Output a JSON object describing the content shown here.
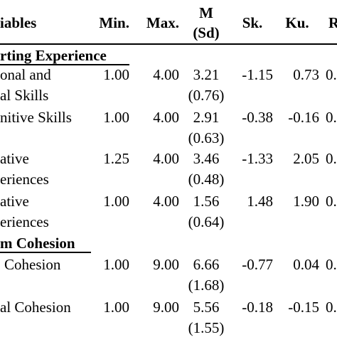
{
  "header": {
    "variables": "iables",
    "min": "Min.",
    "max": "Max.",
    "mean_top": "M",
    "mean_bottom": "(Sd)",
    "skew": "Sk.",
    "kurt": "Ku.",
    "last": "R"
  },
  "section1": {
    "title": "rting Experience",
    "rows": [
      {
        "label1": "onal and",
        "label2": "al Skills",
        "min": "1.00",
        "max": "4.00",
        "mean": "3.21",
        "sd": "(0.76)",
        "sk": "-1.15",
        "ku": "0.73",
        "last": "0."
      },
      {
        "label1": "nitive Skills",
        "label2": "",
        "min": "1.00",
        "max": "4.00",
        "mean": "2.91",
        "sd": "(0.63)",
        "sk": "-0.38",
        "ku": "-0.16",
        "last": "0."
      },
      {
        "label1": "ative",
        "label2": "eriences",
        "min": "1.25",
        "max": "4.00",
        "mean": "3.46",
        "sd": "(0.48)",
        "sk": "-1.33",
        "ku": "2.05",
        "last": "0."
      },
      {
        "label1": "ative",
        "label2": "eriences",
        "min": "1.00",
        "max": "4.00",
        "mean": "1.56",
        "sd": "(0.64)",
        "sk": "1.48",
        "ku": "1.90",
        "last": "0."
      }
    ]
  },
  "section2": {
    "title": "m Cohesion",
    "rows": [
      {
        "label1": "Cohesion",
        "label2": "",
        "min": "1.00",
        "max": "9.00",
        "mean": "6.66",
        "sd": "(1.68)",
        "sk": "-0.77",
        "ku": "0.04",
        "last": "0."
      },
      {
        "label1": "al Cohesion",
        "label2": "",
        "min": "1.00",
        "max": "9.00",
        "mean": "5.56",
        "sd": "(1.55)",
        "sk": "-0.18",
        "ku": "-0.15",
        "last": "0."
      }
    ]
  }
}
